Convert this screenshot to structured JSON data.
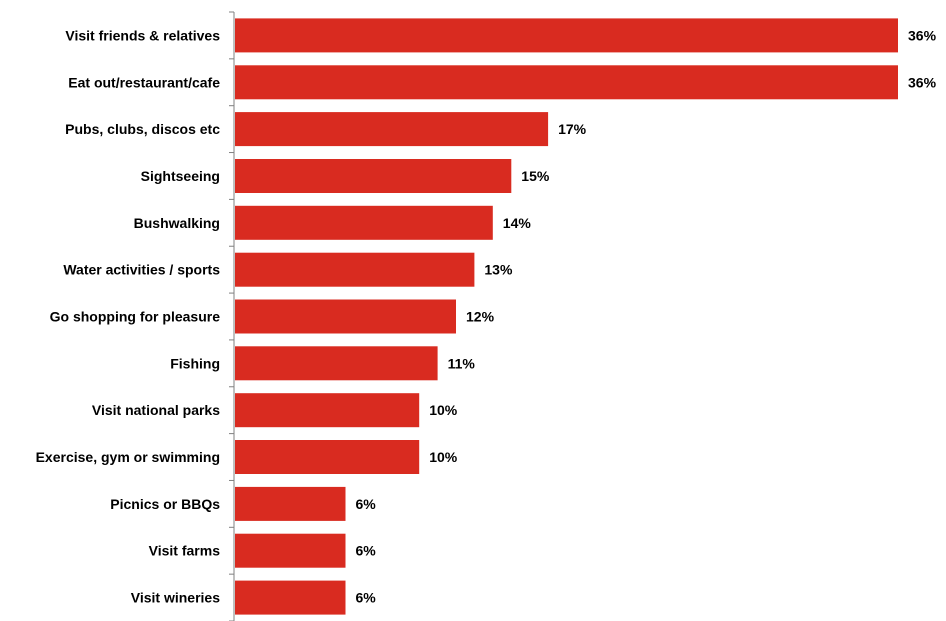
{
  "chart_data": {
    "type": "bar",
    "orientation": "horizontal",
    "categories": [
      "Visit friends & relatives",
      "Eat out/restaurant/cafe",
      "Pubs, clubs, discos etc",
      "Sightseeing",
      "Bushwalking",
      "Water activities / sports",
      "Go shopping for pleasure",
      "Fishing",
      "Visit national parks",
      "Exercise, gym or swimming",
      "Picnics or BBQs",
      "Visit farms",
      "Visit wineries"
    ],
    "values": [
      36,
      36,
      17,
      15,
      14,
      13,
      12,
      11,
      10,
      10,
      6,
      6,
      6
    ],
    "value_labels": [
      "36%",
      "36%",
      "17%",
      "15%",
      "14%",
      "13%",
      "12%",
      "11%",
      "10%",
      "10%",
      "6%",
      "6%",
      "6%"
    ],
    "unit": "%",
    "xlim": [
      0,
      36
    ],
    "bar_color": "#d92b20",
    "title": "",
    "xlabel": "",
    "ylabel": ""
  }
}
